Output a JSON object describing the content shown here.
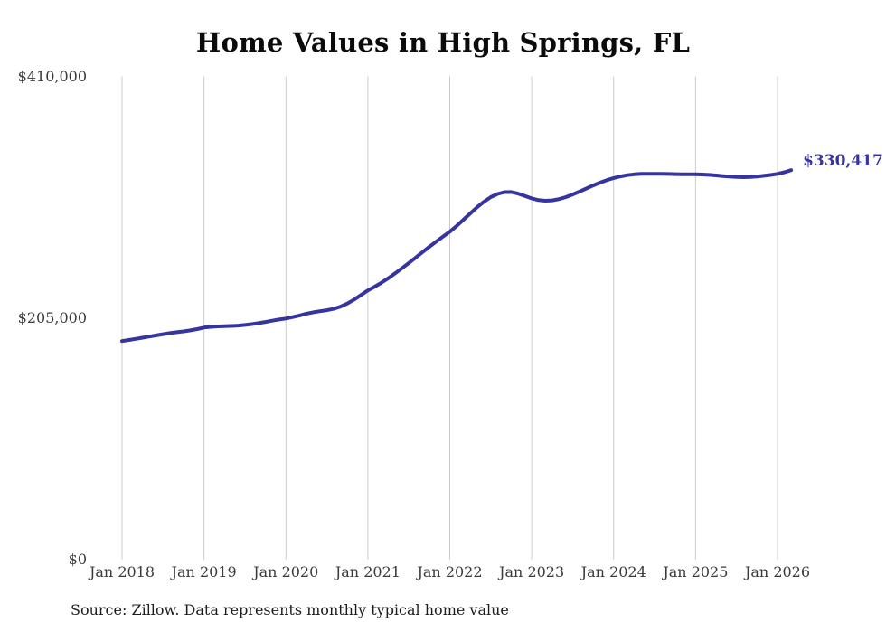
{
  "title": "Home Values in High Springs, FL",
  "source_note": "Source: Zillow. Data represents monthly typical home value",
  "colors": {
    "line": "#36349f",
    "grid": "#cccccc",
    "axis_text": "#3a3a3a",
    "title_text": "#0b0b0b",
    "end_label": "#36349f",
    "background": "#ffffff"
  },
  "chart_data": {
    "type": "line",
    "title": "Home Values in High Springs, FL",
    "xlabel": "",
    "ylabel": "",
    "ylim": [
      0,
      410000
    ],
    "grid": "vertical-only",
    "legend": "none",
    "x_start": "Jan 2018",
    "x_interval": "monthly",
    "x_tick_labels": [
      "Jan 2018",
      "Jan 2019",
      "Jan 2020",
      "Jan 2021",
      "Jan 2022",
      "Jan 2023",
      "Jan 2024",
      "Jan 2025",
      "Jan 2026"
    ],
    "x_tick_month_indices": [
      0,
      12,
      24,
      36,
      48,
      60,
      72,
      84,
      96
    ],
    "y_ticks": [
      {
        "label": "$0",
        "value": 0
      },
      {
        "label": "$205,000",
        "value": 205000
      },
      {
        "label": "$410,000",
        "value": 410000
      }
    ],
    "end_annotation": "$330,417",
    "latest_value": 330417,
    "series": [
      {
        "name": "Typical home value",
        "values": [
          185500,
          186400,
          187300,
          188300,
          189300,
          190300,
          191300,
          192200,
          193000,
          193700,
          194500,
          195600,
          196900,
          197500,
          197900,
          198100,
          198300,
          198600,
          199100,
          199800,
          200700,
          201700,
          202700,
          203700,
          204600,
          205800,
          207200,
          208700,
          209900,
          210800,
          211600,
          212800,
          214700,
          217300,
          220700,
          224500,
          228400,
          231600,
          235000,
          238800,
          242900,
          247200,
          251700,
          256300,
          260900,
          265400,
          269800,
          274100,
          278200,
          283100,
          288400,
          293800,
          299000,
          303700,
          307600,
          310300,
          311800,
          311900,
          310600,
          308500,
          306500,
          305100,
          304500,
          304800,
          305900,
          307600,
          309800,
          312300,
          314900,
          317500,
          319900,
          322000,
          323800,
          325200,
          326200,
          326900,
          327300,
          327400,
          327400,
          327300,
          327200,
          327100,
          327000,
          327000,
          327000,
          326800,
          326500,
          326000,
          325500,
          325000,
          324600,
          324500,
          324700,
          325100,
          325700,
          326400,
          327300,
          328700,
          330417
        ]
      }
    ]
  }
}
